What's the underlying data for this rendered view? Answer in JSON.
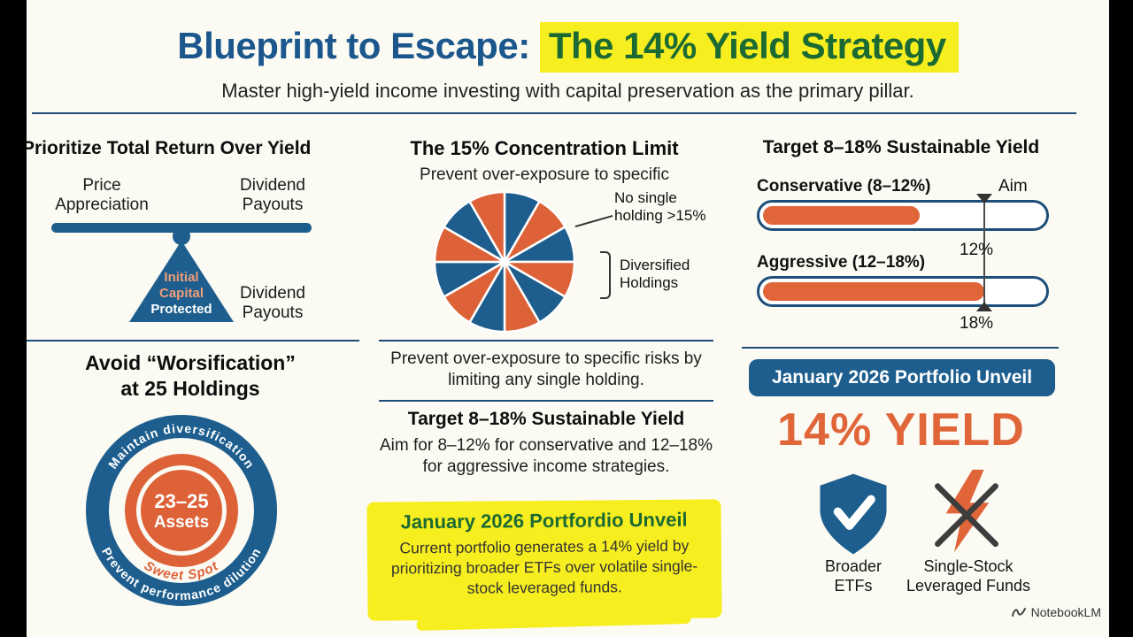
{
  "header": {
    "title_prefix": "Blueprint to Escape: ",
    "title_highlight": "The 14% Yield Strategy",
    "subtitle": "Master high-yield income investing with capital preservation as the primary pillar."
  },
  "left_column": {
    "total_return": {
      "heading": "Prioritize Total Return Over Yield",
      "left_label": "Price\nAppreciation",
      "right_label": "Dividend\nPayouts",
      "triangle_line1": "Initial",
      "triangle_line2": "Capital",
      "triangle_line3": "Protected",
      "lower_right_label": "Dividend\nPayouts"
    },
    "worsification": {
      "heading": "Avoid “Worsification”\nat 25 Holdings",
      "arc_top": "Maintain diversification",
      "arc_bottom": "Prevent performance dilution",
      "center_line1": "23–25",
      "center_line2": "Assets",
      "sweet_spot": "Sweet Spot"
    }
  },
  "middle_column": {
    "concentration": {
      "heading": "The 15% Concentration Limit",
      "subheading": "Prevent over-exposure to specific",
      "callout_no_single": "No single\nholding >15%",
      "callout_diversified": "Diversified\nHoldings",
      "note": "Prevent over-exposure to specific risks by limiting any single holding."
    },
    "target_yield": {
      "heading": "Target 8–18% Sustainable Yield",
      "body": "Aim for 8–12% for conservative and 12–18% for aggressive income strategies."
    },
    "january_unveil": {
      "heading": "January 2026 Portfordio Unveil",
      "body": "Current portfolio generates a 14% yield by prioritizing broader ETFs over volatile single-stock leveraged funds."
    }
  },
  "right_column": {
    "target_yield": {
      "heading": "Target 8–18% Sustainable Yield",
      "aim_label": "Aim",
      "bars": [
        {
          "label": "Conservative (8–12%)",
          "fill_pct": 56
        },
        {
          "label": "Aggressive (12–18%)",
          "fill_pct": 79
        }
      ],
      "marker_mid": "12%",
      "marker_bottom": "18%"
    },
    "unveil": {
      "banner": "January 2026 Portfolio Unveil",
      "big_yield": "14% YIELD",
      "shield_label": "Broader\nETFs",
      "bolt_label": "Single-Stock\nLeveraged Funds"
    }
  },
  "watermark": "NotebookLM",
  "colors": {
    "brand_blue": "#1d5e8e",
    "accent_orange": "#dd6238",
    "highlight_yellow": "#f7ee1f",
    "highlight_green_text": "#1c6a33",
    "divider_navy": "#1d4e7a"
  },
  "chart_data": [
    {
      "type": "pie",
      "title": "The 15% Concentration Limit",
      "annotation_1": "No single holding >15%",
      "annotation_2": "Diversified Holdings",
      "values": [
        1,
        1,
        1,
        1,
        1,
        1,
        1,
        1,
        1,
        1,
        1,
        1
      ],
      "colors": [
        "#1d5e8e",
        "#dd6238",
        "#1d5e8e",
        "#dd6238",
        "#1d5e8e",
        "#dd6238",
        "#1d5e8e",
        "#dd6238",
        "#1d5e8e",
        "#dd6238",
        "#1d5e8e",
        "#dd6238"
      ]
    },
    {
      "type": "bar",
      "title": "Target 8–18% Sustainable Yield",
      "categories": [
        "Conservative (8–12%)",
        "Aggressive (12–18%)"
      ],
      "values": [
        56,
        79
      ],
      "ylabel": "gauge fill percent",
      "markers": [
        "12%",
        "18%"
      ]
    }
  ]
}
